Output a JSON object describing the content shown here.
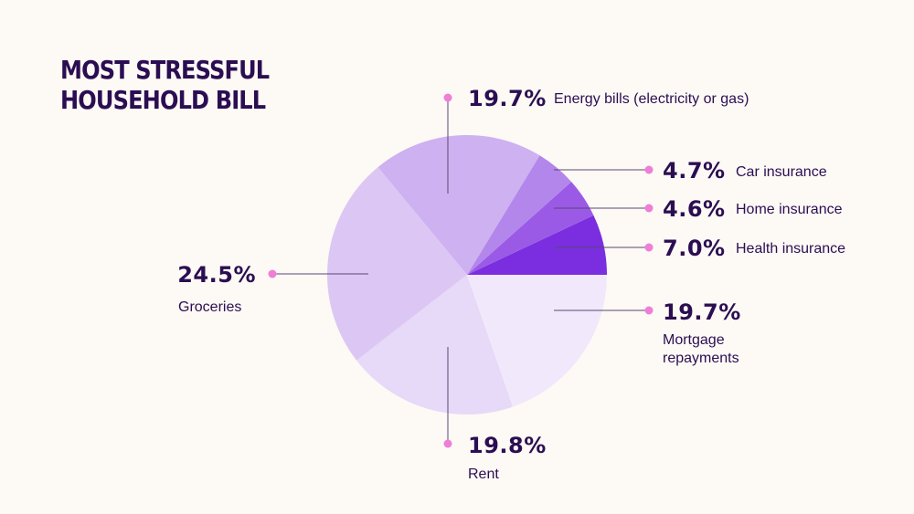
{
  "title_lines": [
    "MOST STRESSFUL",
    "HOUSEHOLD BILL"
  ],
  "chart_data": {
    "type": "pie",
    "title": "MOST STRESSFUL HOUSEHOLD BILL",
    "slices": [
      {
        "label": "Health insurance",
        "value": 7.0,
        "value_label": "7.0%",
        "color": "#7b2de0"
      },
      {
        "label": "Home insurance",
        "value": 4.6,
        "value_label": "4.6%",
        "color": "#9a5ae6"
      },
      {
        "label": "Car insurance",
        "value": 4.7,
        "value_label": "4.7%",
        "color": "#b386ec"
      },
      {
        "label": "Energy bills (electricity or gas)",
        "value": 19.7,
        "value_label": "19.7%",
        "color": "#cdb1f0"
      },
      {
        "label": "Groceries",
        "value": 24.5,
        "value_label": "24.5%",
        "color": "#dcc7f4"
      },
      {
        "label": "Rent",
        "value": 19.8,
        "value_label": "19.8%",
        "color": "#e7d9f8"
      },
      {
        "label": "Mortgage repayments",
        "value": 19.7,
        "value_label": "19.7%",
        "color": "#f1e9fb"
      }
    ]
  }
}
